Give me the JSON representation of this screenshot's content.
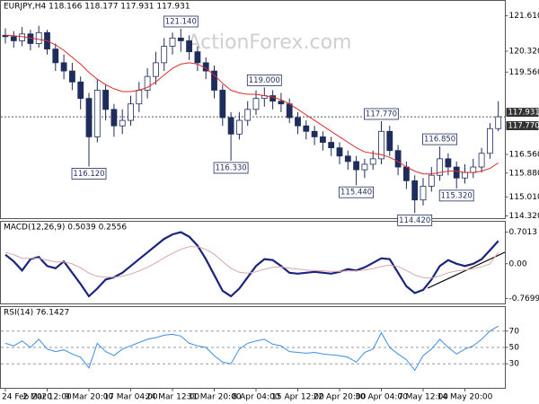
{
  "chart_data": [
    {
      "type": "candlestick",
      "title": "EURJPY,H4  118.166 118.177 117.931 117.931",
      "watermark": "ActionForex.com",
      "categories": [
        "24 Feb 2020",
        null,
        null,
        null,
        null,
        "2 Mar 12:00",
        null,
        null,
        null,
        null,
        "9 Mar 20:00",
        null,
        null,
        null,
        null,
        "17 Mar 04:00",
        null,
        null,
        null,
        null,
        "24 Mar 12:00",
        null,
        null,
        null,
        null,
        "31 Mar 20:00",
        null,
        null,
        null,
        null,
        "8 Apr 04:00",
        null,
        null,
        null,
        null,
        "15 Apr 12:00",
        null,
        null,
        null,
        null,
        "22 Apr 20:00",
        null,
        null,
        null,
        null,
        "30 Apr 04:00",
        null,
        null,
        null,
        null,
        "7 May 12:00",
        null,
        null,
        null,
        null,
        "14 May 20:00",
        null,
        null,
        null,
        null
      ],
      "open": [
        120.9,
        120.85,
        120.7,
        120.95,
        120.6,
        121.0,
        120.4,
        119.9,
        119.6,
        119.2,
        118.6,
        117.2,
        118.9,
        118.2,
        117.6,
        117.8,
        118.4,
        118.9,
        119.4,
        119.9,
        120.5,
        120.8,
        120.7,
        120.3,
        119.9,
        119.6,
        118.9,
        117.9,
        117.3,
        117.8,
        118.2,
        118.6,
        118.7,
        118.5,
        118.4,
        117.9,
        117.6,
        117.4,
        117.2,
        117.0,
        116.8,
        116.5,
        116.3,
        116.0,
        116.2,
        116.4,
        117.4,
        116.7,
        116.1,
        115.6,
        114.9,
        115.4,
        115.8,
        116.4,
        116.1,
        115.7,
        115.9,
        116.1,
        116.6,
        117.5
      ],
      "high": [
        121.15,
        121.05,
        121.2,
        121.1,
        121.25,
        121.1,
        120.6,
        120.2,
        119.9,
        119.4,
        118.8,
        119.3,
        119.1,
        118.4,
        118.2,
        118.7,
        119.2,
        119.7,
        120.3,
        120.8,
        121.0,
        121.14,
        120.9,
        120.5,
        120.1,
        119.8,
        119.1,
        118.1,
        118.1,
        118.5,
        118.9,
        119.0,
        118.9,
        118.8,
        118.6,
        118.1,
        117.8,
        117.6,
        117.4,
        117.2,
        117.0,
        116.7,
        116.5,
        116.4,
        116.7,
        117.77,
        117.6,
        116.9,
        116.3,
        115.8,
        115.7,
        116.1,
        116.85,
        116.6,
        116.3,
        116.2,
        116.4,
        116.8,
        117.7,
        118.5
      ],
      "low": [
        120.6,
        120.45,
        120.5,
        120.35,
        120.45,
        120.2,
        119.6,
        119.3,
        118.9,
        118.2,
        116.12,
        117.0,
        117.8,
        117.2,
        117.3,
        117.6,
        118.1,
        118.6,
        119.1,
        119.6,
        120.2,
        120.3,
        120.0,
        119.6,
        119.3,
        118.6,
        117.6,
        116.33,
        117.1,
        117.6,
        118.0,
        118.3,
        118.2,
        118.1,
        117.7,
        117.3,
        117.1,
        116.9,
        116.7,
        116.5,
        116.2,
        116.0,
        115.44,
        115.7,
        116.0,
        116.2,
        116.5,
        115.8,
        115.3,
        114.42,
        114.7,
        115.2,
        115.6,
        115.8,
        115.32,
        115.5,
        115.7,
        115.9,
        116.4,
        117.4
      ],
      "close": [
        120.85,
        120.7,
        120.95,
        120.6,
        121.0,
        120.4,
        119.9,
        119.6,
        119.2,
        118.6,
        117.2,
        118.9,
        118.2,
        117.6,
        117.8,
        118.4,
        118.9,
        119.4,
        119.9,
        120.5,
        120.8,
        120.7,
        120.3,
        119.9,
        119.6,
        118.9,
        117.9,
        117.3,
        117.8,
        118.2,
        118.6,
        118.7,
        118.5,
        118.4,
        117.9,
        117.6,
        117.4,
        117.2,
        117.0,
        116.8,
        116.5,
        116.3,
        116.0,
        116.2,
        116.4,
        117.4,
        116.7,
        116.1,
        115.6,
        114.9,
        115.4,
        115.8,
        116.4,
        116.1,
        115.7,
        115.9,
        116.1,
        116.6,
        117.5,
        117.931
      ],
      "candle_color": "#1f2d5c",
      "series": [
        {
          "color": "#e02b2b",
          "values": [
            120.9,
            120.88,
            120.85,
            120.8,
            120.75,
            120.7,
            120.55,
            120.35,
            120.1,
            119.85,
            119.55,
            119.3,
            119.1,
            118.95,
            118.85,
            118.85,
            118.9,
            119.0,
            119.2,
            119.45,
            119.7,
            119.85,
            119.9,
            119.85,
            119.7,
            119.45,
            119.15,
            118.9,
            118.8,
            118.75,
            118.75,
            118.7,
            118.65,
            118.55,
            118.4,
            118.2,
            118.0,
            117.8,
            117.6,
            117.4,
            117.2,
            117.0,
            116.8,
            116.65,
            116.6,
            116.55,
            116.45,
            116.3,
            116.1,
            115.95,
            115.85,
            115.85,
            115.9,
            115.95,
            115.95,
            115.9,
            115.9,
            115.95,
            116.05,
            116.25
          ]
        }
      ],
      "ylim": [
        114.22,
        122.17
      ],
      "yticks": [
        {
          "value": 121.61,
          "label": "121.610"
        },
        {
          "value": 120.32,
          "label": "120.320"
        },
        {
          "value": 119.56,
          "label": "119.560"
        },
        {
          "value": 116.56,
          "label": "116.560"
        },
        {
          "value": 115.88,
          "label": "115.880"
        },
        {
          "value": 115.01,
          "label": "115.010"
        },
        {
          "value": 114.32,
          "label": "114.320"
        }
      ],
      "annotations": [
        {
          "value": 121.14,
          "label": "121.140"
        },
        {
          "value": 119.0,
          "label": "119.000"
        },
        {
          "value": 117.77,
          "label": "117.770"
        },
        {
          "value": 116.85,
          "label": "116.850"
        },
        {
          "value": 116.12,
          "label": "116.120"
        },
        {
          "value": 116.33,
          "label": "116.330"
        },
        {
          "value": 115.44,
          "label": "115.440"
        },
        {
          "value": 115.32,
          "label": "115.320"
        },
        {
          "value": 114.42,
          "label": "114.420"
        }
      ],
      "price_labels": [
        {
          "value": 117.931,
          "label": "117.931"
        },
        {
          "value": 117.77,
          "label": "117.770"
        }
      ]
    },
    {
      "type": "line",
      "title": "MACD(12,26,9) 0.5039 0.2556",
      "series": [
        {
          "color": "#1a237e",
          "values": [
            0.2,
            0.05,
            -0.15,
            0.1,
            0.15,
            -0.05,
            -0.1,
            0.05,
            -0.2,
            -0.45,
            -0.72,
            -0.55,
            -0.35,
            -0.3,
            -0.2,
            -0.05,
            0.1,
            0.25,
            0.4,
            0.55,
            0.65,
            0.7,
            0.6,
            0.4,
            0.1,
            -0.25,
            -0.6,
            -0.72,
            -0.55,
            -0.3,
            -0.05,
            0.1,
            0.08,
            -0.05,
            -0.2,
            -0.22,
            -0.2,
            -0.18,
            -0.2,
            -0.22,
            -0.18,
            -0.12,
            -0.15,
            -0.08,
            0.02,
            0.12,
            0.1,
            -0.2,
            -0.5,
            -0.65,
            -0.58,
            -0.35,
            -0.05,
            0.08,
            0.0,
            -0.05,
            0.0,
            0.1,
            0.3,
            0.5039
          ]
        },
        {
          "color": "#d9a6a6",
          "values": [
            0.25,
            0.2,
            0.12,
            0.12,
            0.12,
            0.08,
            0.04,
            0.04,
            0.0,
            -0.09,
            -0.21,
            -0.28,
            -0.3,
            -0.3,
            -0.28,
            -0.23,
            -0.16,
            -0.08,
            0.02,
            0.13,
            0.23,
            0.32,
            0.38,
            0.38,
            0.32,
            0.21,
            0.05,
            -0.1,
            -0.19,
            -0.21,
            -0.18,
            -0.12,
            -0.08,
            -0.07,
            -0.1,
            -0.12,
            -0.14,
            -0.15,
            -0.16,
            -0.17,
            -0.17,
            -0.16,
            -0.16,
            -0.14,
            -0.11,
            -0.06,
            -0.03,
            -0.06,
            -0.15,
            -0.25,
            -0.31,
            -0.32,
            -0.27,
            -0.2,
            -0.16,
            -0.14,
            -0.11,
            -0.07,
            0.0,
            0.2556
          ]
        }
      ],
      "ylim": [
        -0.89,
        0.94
      ],
      "yticks": [
        0.7013,
        {
          "value": 0,
          "label": "0.00"
        },
        -0.7699
      ]
    },
    {
      "type": "line",
      "title": "RSI(14) 76.1427",
      "series": [
        {
          "color": "#3a8ee6",
          "values": [
            55,
            52,
            58,
            50,
            60,
            48,
            45,
            47,
            42,
            38,
            25,
            55,
            45,
            40,
            48,
            52,
            56,
            60,
            62,
            65,
            66,
            64,
            55,
            52,
            50,
            40,
            32,
            30,
            48,
            55,
            58,
            60,
            54,
            52,
            45,
            44,
            43,
            44,
            42,
            41,
            40,
            38,
            32,
            44,
            48,
            68,
            50,
            42,
            35,
            22,
            40,
            48,
            60,
            50,
            42,
            48,
            52,
            60,
            70,
            76.1427
          ]
        }
      ],
      "ylim": [
        0,
        100
      ],
      "yticks": [
        30,
        50,
        70
      ],
      "grid": true
    }
  ]
}
